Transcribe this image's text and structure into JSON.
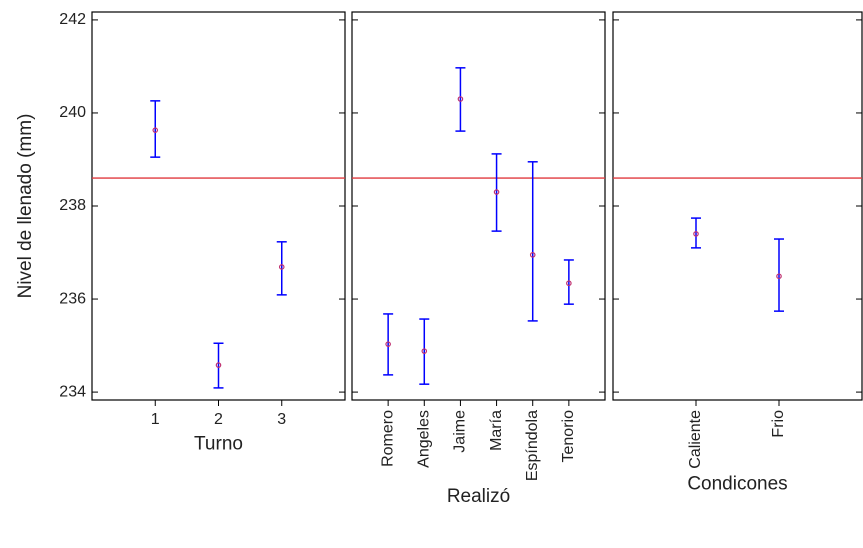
{
  "chart_data": [
    {
      "type": "errorbar",
      "ylabel": "Nivel de llenado (mm)",
      "xlabel": "Turno",
      "categories": [
        "1",
        "2",
        "3"
      ],
      "values": [
        239.63,
        234.58,
        236.69
      ],
      "lower": [
        239.05,
        234.09,
        236.09
      ],
      "upper": [
        240.26,
        235.05,
        237.23
      ],
      "ylim": [
        233.83,
        242.17
      ],
      "yticks": [
        234,
        236,
        238,
        240,
        242
      ],
      "reference_line": 238.6,
      "reference_color": "#e0393e",
      "color": "#0000ff",
      "marker_color": "#c0306f",
      "xtick_rotation": 0
    },
    {
      "type": "errorbar",
      "xlabel": "Realizó",
      "categories": [
        "Romero",
        "Angeles",
        "Jaime",
        "María",
        "Espíndola",
        "Tenorio"
      ],
      "values": [
        235.03,
        234.88,
        240.3,
        238.3,
        236.95,
        236.34
      ],
      "lower": [
        234.37,
        234.17,
        239.61,
        237.46,
        235.53,
        235.89
      ],
      "upper": [
        235.68,
        235.57,
        240.97,
        239.12,
        238.95,
        236.84
      ],
      "ylim": [
        233.83,
        242.17
      ],
      "reference_line": 238.6,
      "reference_color": "#e0393e",
      "color": "#0000ff",
      "marker_color": "#c0306f",
      "xtick_rotation": -90
    },
    {
      "type": "errorbar",
      "xlabel": "Condicones",
      "categories": [
        "Caliente",
        "Frio"
      ],
      "values": [
        237.4,
        236.49
      ],
      "lower": [
        237.1,
        235.74
      ],
      "upper": [
        237.74,
        237.29
      ],
      "ylim": [
        233.83,
        242.17
      ],
      "reference_line": 238.6,
      "reference_color": "#e0393e",
      "color": "#0000ff",
      "marker_color": "#c0306f",
      "xtick_rotation": -90
    }
  ]
}
